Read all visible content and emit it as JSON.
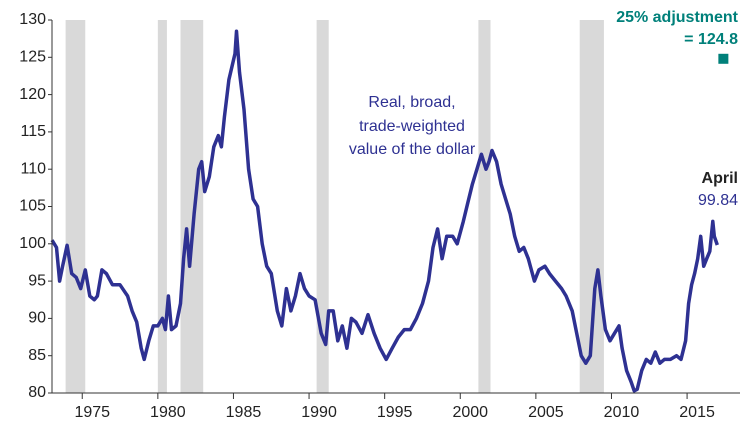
{
  "chart_data": {
    "type": "line",
    "annotation": [
      "Real, broad,",
      "trade-weighted",
      "value of the dollar"
    ],
    "end_label": {
      "text": "April",
      "value": 99.84
    },
    "adjustment": {
      "lines": [
        "25% adjustment",
        "= 124.8"
      ],
      "x": 2017.4,
      "value": 124.8,
      "color": "#00807a"
    },
    "shading": [
      [
        1973.9,
        1975.2
      ],
      [
        1980.0,
        1980.6
      ],
      [
        1981.5,
        1983.0
      ],
      [
        1990.5,
        1991.3
      ],
      [
        2001.2,
        2002.0
      ],
      [
        2007.9,
        2009.5
      ]
    ],
    "shading_color": "#d9d9d9",
    "xlim": [
      1973,
      2018.5
    ],
    "xticks": [
      1975,
      1980,
      1985,
      1990,
      1995,
      2000,
      2005,
      2010,
      2015
    ],
    "ylim": [
      80,
      130
    ],
    "yticks": [
      80,
      85,
      90,
      95,
      100,
      105,
      110,
      115,
      120,
      125,
      130
    ],
    "series": [
      {
        "color": "#2e3192",
        "x": [
          1973.0,
          1973.3,
          1973.5,
          1973.7,
          1974.0,
          1974.3,
          1974.6,
          1974.9,
          1975.2,
          1975.5,
          1975.8,
          1976.0,
          1976.3,
          1976.6,
          1977.0,
          1977.5,
          1978.0,
          1978.3,
          1978.6,
          1978.9,
          1979.1,
          1979.4,
          1979.7,
          1980.0,
          1980.3,
          1980.5,
          1980.7,
          1980.9,
          1981.2,
          1981.5,
          1981.7,
          1981.9,
          1982.1,
          1982.4,
          1982.7,
          1982.9,
          1983.1,
          1983.4,
          1983.7,
          1984.0,
          1984.2,
          1984.4,
          1984.7,
          1985.1,
          1985.2,
          1985.4,
          1985.7,
          1986.0,
          1986.3,
          1986.6,
          1986.9,
          1987.2,
          1987.5,
          1987.9,
          1988.2,
          1988.5,
          1988.8,
          1989.1,
          1989.4,
          1989.7,
          1990.0,
          1990.4,
          1990.8,
          1991.1,
          1991.3,
          1991.6,
          1991.9,
          1992.2,
          1992.5,
          1992.8,
          1993.1,
          1993.5,
          1993.9,
          1994.3,
          1994.7,
          1995.1,
          1995.5,
          1995.9,
          1996.3,
          1996.7,
          1997.1,
          1997.5,
          1997.9,
          1998.2,
          1998.5,
          1998.8,
          1999.1,
          1999.5,
          1999.8,
          2000.2,
          2000.5,
          2000.8,
          2001.1,
          2001.4,
          2001.7,
          2001.9,
          2002.1,
          2002.4,
          2002.7,
          2003.0,
          2003.3,
          2003.6,
          2003.9,
          2004.2,
          2004.5,
          2004.9,
          2005.2,
          2005.6,
          2005.9,
          2006.3,
          2006.7,
          2007.0,
          2007.4,
          2007.7,
          2008.0,
          2008.3,
          2008.6,
          2008.9,
          2009.1,
          2009.3,
          2009.6,
          2009.9,
          2010.2,
          2010.5,
          2010.7,
          2011.0,
          2011.3,
          2011.5,
          2011.7,
          2012.0,
          2012.3,
          2012.6,
          2012.9,
          2013.2,
          2013.5,
          2013.9,
          2014.3,
          2014.6,
          2014.9,
          2015.1,
          2015.3,
          2015.5,
          2015.7,
          2015.9,
          2016.1,
          2016.3,
          2016.5,
          2016.7,
          2016.8,
          2017.0
        ],
        "values": [
          100.5,
          99.5,
          95,
          97,
          99.8,
          96,
          95.5,
          94,
          96.5,
          93,
          92.5,
          93,
          96.5,
          96,
          94.5,
          94.5,
          93,
          91,
          89.5,
          86,
          84.5,
          87,
          89,
          89,
          90,
          88.5,
          93,
          88.5,
          89,
          92,
          98,
          102,
          97,
          104,
          110,
          111,
          107,
          109,
          113,
          114.5,
          113,
          117,
          122,
          125.5,
          128.5,
          123,
          118,
          110,
          106,
          105,
          100,
          97,
          96,
          91,
          89,
          94,
          91,
          93,
          96,
          94,
          93,
          92.5,
          88,
          86.5,
          91,
          91,
          87,
          89,
          86,
          90,
          89.5,
          88,
          90.5,
          88,
          86,
          84.5,
          86,
          87.5,
          88.5,
          88.5,
          90,
          92,
          95,
          99.5,
          102,
          98,
          101,
          101,
          100,
          103,
          105.5,
          108,
          110,
          112,
          110,
          111,
          112.5,
          111,
          108,
          106,
          104,
          101,
          99,
          99.5,
          98,
          95,
          96.5,
          97,
          96,
          95,
          94,
          93,
          91,
          88,
          85,
          84,
          85,
          94,
          96.5,
          93,
          88.5,
          87,
          88,
          89,
          86,
          83,
          81.5,
          80.3,
          80.5,
          83,
          84.5,
          84,
          85.5,
          84,
          84.5,
          84.5,
          85,
          84.5,
          87,
          92,
          94.5,
          96,
          98,
          101,
          97,
          98,
          99,
          103,
          101,
          99.84
        ]
      }
    ]
  }
}
